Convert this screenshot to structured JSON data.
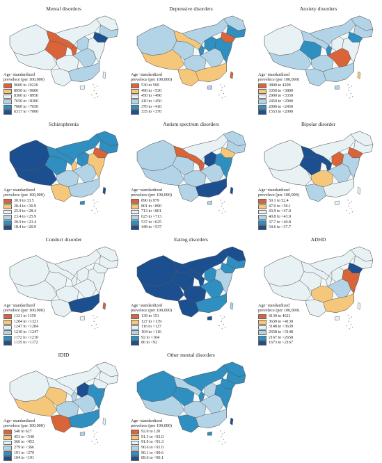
{
  "legend_title_line1": "Age−standardized",
  "legend_title_line2": "preveleсe (per 100,000)",
  "palette": [
    "#d9643a",
    "#f5c77a",
    "#e8f2f5",
    "#b3d3e6",
    "#2f8fc1",
    "#1c4f8f"
  ],
  "panels": [
    {
      "title": "Mental disorders",
      "legend": [
        "9600 to 10226",
        "8950 to <9600",
        "8300 to <8950",
        "7650 to <8300",
        "7000 to <7650",
        "6317 to <7000"
      ],
      "map": [
        {
          "region": "xinjiang",
          "class": 2
        },
        {
          "region": "tibet",
          "class": 2
        },
        {
          "region": "qinghai",
          "class": 0
        },
        {
          "region": "gansu",
          "class": 0
        },
        {
          "region": "inner-mongolia",
          "class": 2
        },
        {
          "region": "heilongjiang",
          "class": 2
        },
        {
          "region": "jilin",
          "class": 3
        },
        {
          "region": "liaoning",
          "class": 5
        },
        {
          "region": "sichuan",
          "class": 2
        },
        {
          "region": "yunnan",
          "class": 2
        },
        {
          "region": "central",
          "class": 3
        },
        {
          "region": "east-coast",
          "class": 2
        },
        {
          "region": "south",
          "class": 3
        },
        {
          "region": "taiwan",
          "class": 2
        },
        {
          "region": "hainan",
          "class": 2
        },
        {
          "region": "ningxia",
          "class": 0
        },
        {
          "region": "shanxi",
          "class": 3
        }
      ]
    },
    {
      "title": "Depressive disorders",
      "legend": [
        "530 to 569",
        "490 to <530",
        "450 to <490",
        "410 to <450",
        "370 to <410",
        "335 to <370"
      ],
      "map": [
        {
          "region": "xinjiang",
          "class": 3
        },
        {
          "region": "tibet",
          "class": 1
        },
        {
          "region": "qinghai",
          "class": 3
        },
        {
          "region": "gansu",
          "class": 1
        },
        {
          "region": "inner-mongolia",
          "class": 3
        },
        {
          "region": "heilongjiang",
          "class": 3
        },
        {
          "region": "jilin",
          "class": 4
        },
        {
          "region": "liaoning",
          "class": 0
        },
        {
          "region": "sichuan",
          "class": 3
        },
        {
          "region": "yunnan",
          "class": 1
        },
        {
          "region": "central",
          "class": 3
        },
        {
          "region": "east-coast",
          "class": 4
        },
        {
          "region": "south",
          "class": 1
        },
        {
          "region": "taiwan",
          "class": 0
        },
        {
          "region": "hainan",
          "class": 3
        },
        {
          "region": "ningxia",
          "class": 4
        },
        {
          "region": "shanxi",
          "class": 4
        }
      ]
    },
    {
      "title": "Anxiety disorders",
      "legend": [
        "3800 to 4299",
        "3350 to <3800",
        "2900 to <3350",
        "2450 to <2900",
        "2000 to <2450",
        "1553 to <2000"
      ],
      "map": [
        {
          "region": "xinjiang",
          "class": 2
        },
        {
          "region": "tibet",
          "class": 3
        },
        {
          "region": "qinghai",
          "class": 4
        },
        {
          "region": "gansu",
          "class": 3
        },
        {
          "region": "inner-mongolia",
          "class": 3
        },
        {
          "region": "heilongjiang",
          "class": 3
        },
        {
          "region": "jilin",
          "class": 3
        },
        {
          "region": "liaoning",
          "class": 4
        },
        {
          "region": "sichuan",
          "class": 3
        },
        {
          "region": "yunnan",
          "class": 3
        },
        {
          "region": "central",
          "class": 0
        },
        {
          "region": "east-coast",
          "class": 2
        },
        {
          "region": "south",
          "class": 3
        },
        {
          "region": "taiwan",
          "class": 1
        },
        {
          "region": "hainan",
          "class": 3
        },
        {
          "region": "ningxia",
          "class": 4
        },
        {
          "region": "shanxi",
          "class": 2
        }
      ]
    },
    {
      "title": "Schizophrenia",
      "legend": [
        "30.9 to 33.5",
        "28.4 to <30.9",
        "25.9 to <28.4",
        "23.4 to <25.9",
        "20.9 to <23.4",
        "18.4 to <20.9"
      ],
      "map": [
        {
          "region": "xinjiang",
          "class": 5
        },
        {
          "region": "tibet",
          "class": 5
        },
        {
          "region": "qinghai",
          "class": 4
        },
        {
          "region": "gansu",
          "class": 4
        },
        {
          "region": "inner-mongolia",
          "class": 4
        },
        {
          "region": "heilongjiang",
          "class": 4
        },
        {
          "region": "jilin",
          "class": 4
        },
        {
          "region": "liaoning",
          "class": 0
        },
        {
          "region": "sichuan",
          "class": 3
        },
        {
          "region": "yunnan",
          "class": 1
        },
        {
          "region": "central",
          "class": 3
        },
        {
          "region": "east-coast",
          "class": 1
        },
        {
          "region": "south",
          "class": 3
        },
        {
          "region": "taiwan",
          "class": 5
        },
        {
          "region": "hainan",
          "class": 4
        },
        {
          "region": "ningxia",
          "class": 1
        },
        {
          "region": "shanxi",
          "class": 4
        }
      ]
    },
    {
      "title": "Autism spectrum disorders",
      "legend": [
        "890 to 979",
        "801 to <890",
        "713 to <801",
        "625 to <713",
        "537 to <625",
        "448 to <537"
      ],
      "map": [
        {
          "region": "xinjiang",
          "class": 3
        },
        {
          "region": "tibet",
          "class": 3
        },
        {
          "region": "qinghai",
          "class": 3
        },
        {
          "region": "gansu",
          "class": 0
        },
        {
          "region": "inner-mongolia",
          "class": 2
        },
        {
          "region": "heilongjiang",
          "class": 3
        },
        {
          "region": "jilin",
          "class": 3
        },
        {
          "region": "liaoning",
          "class": 1
        },
        {
          "region": "sichuan",
          "class": 3
        },
        {
          "region": "yunnan",
          "class": 3
        },
        {
          "region": "central",
          "class": 3
        },
        {
          "region": "east-coast",
          "class": 4
        },
        {
          "region": "south",
          "class": 5
        },
        {
          "region": "taiwan",
          "class": 5
        },
        {
          "region": "hainan",
          "class": 3
        },
        {
          "region": "ningxia",
          "class": 0
        },
        {
          "region": "shanxi",
          "class": 5
        }
      ]
    },
    {
      "title": "Bipolar disorder",
      "legend": [
        "50.1 to 52.4",
        "47.0 to <50.1",
        "43.9 to <47.0",
        "40.8 to <43.9",
        "37.7 to <40.8",
        "34.6 to <37.7"
      ],
      "map": [
        {
          "region": "xinjiang",
          "class": 2
        },
        {
          "region": "tibet",
          "class": 2
        },
        {
          "region": "qinghai",
          "class": 5
        },
        {
          "region": "gansu",
          "class": 5
        },
        {
          "region": "inner-mongolia",
          "class": 2
        },
        {
          "region": "heilongjiang",
          "class": 2
        },
        {
          "region": "jilin",
          "class": 2
        },
        {
          "region": "liaoning",
          "class": 0
        },
        {
          "region": "sichuan",
          "class": 1
        },
        {
          "region": "yunnan",
          "class": 3
        },
        {
          "region": "central",
          "class": 3
        },
        {
          "region": "east-coast",
          "class": 3
        },
        {
          "region": "south",
          "class": 2
        },
        {
          "region": "taiwan",
          "class": 2
        },
        {
          "region": "hainan",
          "class": 2
        },
        {
          "region": "ningxia",
          "class": 5
        },
        {
          "region": "shanxi",
          "class": 0
        }
      ]
    },
    {
      "title": "Conduct disorder",
      "legend": [
        "1321 to 1359",
        "1284 to <1321",
        "1247 to <1284",
        "1210 to <1247",
        "1172 to <1210",
        "1135 to <1172"
      ],
      "map": [
        {
          "region": "xinjiang",
          "class": 2
        },
        {
          "region": "tibet",
          "class": 2
        },
        {
          "region": "qinghai",
          "class": 2
        },
        {
          "region": "gansu",
          "class": 2
        },
        {
          "region": "inner-mongolia",
          "class": 2
        },
        {
          "region": "heilongjiang",
          "class": 2
        },
        {
          "region": "jilin",
          "class": 2
        },
        {
          "region": "liaoning",
          "class": 2
        },
        {
          "region": "sichuan",
          "class": 2
        },
        {
          "region": "yunnan",
          "class": 2
        },
        {
          "region": "central",
          "class": 2
        },
        {
          "region": "east-coast",
          "class": 2
        },
        {
          "region": "south",
          "class": 5
        },
        {
          "region": "taiwan",
          "class": 0
        },
        {
          "region": "hainan",
          "class": 2
        },
        {
          "region": "ningxia",
          "class": 2
        },
        {
          "region": "shanxi",
          "class": 2
        }
      ]
    },
    {
      "title": "Eating disorders",
      "legend": [
        "139 to 151",
        "127 to <139",
        "116 to <127",
        "104 to <116",
        "92 to <104",
        "80 to <92"
      ],
      "map": [
        {
          "region": "xinjiang",
          "class": 5
        },
        {
          "region": "tibet",
          "class": 5
        },
        {
          "region": "qinghai",
          "class": 5
        },
        {
          "region": "gansu",
          "class": 5
        },
        {
          "region": "inner-mongolia",
          "class": 5
        },
        {
          "region": "heilongjiang",
          "class": 5
        },
        {
          "region": "jilin",
          "class": 4
        },
        {
          "region": "liaoning",
          "class": 4
        },
        {
          "region": "sichuan",
          "class": 5
        },
        {
          "region": "yunnan",
          "class": 5
        },
        {
          "region": "central",
          "class": 4
        },
        {
          "region": "east-coast",
          "class": 3
        },
        {
          "region": "south",
          "class": 4
        },
        {
          "region": "taiwan",
          "class": 3
        },
        {
          "region": "hainan",
          "class": 5
        },
        {
          "region": "ningxia",
          "class": 5
        },
        {
          "region": "shanxi",
          "class": 4
        }
      ]
    },
    {
      "title": "ADHD",
      "legend": [
        "4130 to 4621",
        "3639 to <4130",
        "3148 to <3639",
        "2658 to <3148",
        "2167 to <2658",
        "1673 to <2167"
      ],
      "map": [
        {
          "region": "xinjiang",
          "class": 2
        },
        {
          "region": "tibet",
          "class": 2
        },
        {
          "region": "qinghai",
          "class": 2
        },
        {
          "region": "gansu",
          "class": 2
        },
        {
          "region": "inner-mongolia",
          "class": 2
        },
        {
          "region": "heilongjiang",
          "class": 2
        },
        {
          "region": "jilin",
          "class": 2
        },
        {
          "region": "liaoning",
          "class": 5
        },
        {
          "region": "sichuan",
          "class": 1
        },
        {
          "region": "yunnan",
          "class": 2
        },
        {
          "region": "central",
          "class": 3
        },
        {
          "region": "east-coast",
          "class": 0
        },
        {
          "region": "south",
          "class": 1
        },
        {
          "region": "taiwan",
          "class": 2
        },
        {
          "region": "hainan",
          "class": 2
        },
        {
          "region": "ningxia",
          "class": 2
        },
        {
          "region": "shanxi",
          "class": 2
        }
      ]
    },
    {
      "title": "IDID",
      "legend": [
        "540 to 627",
        "453 to <540",
        "366 to <453",
        "279 to <366",
        "191 to <279",
        "104 to <191"
      ],
      "map": [
        {
          "region": "xinjiang",
          "class": 2
        },
        {
          "region": "tibet",
          "class": 1
        },
        {
          "region": "qinghai",
          "class": 1
        },
        {
          "region": "gansu",
          "class": 2
        },
        {
          "region": "inner-mongolia",
          "class": 2
        },
        {
          "region": "heilongjiang",
          "class": 2
        },
        {
          "region": "jilin",
          "class": 2
        },
        {
          "region": "liaoning",
          "class": 2
        },
        {
          "region": "sichuan",
          "class": 3
        },
        {
          "region": "yunnan",
          "class": 0
        },
        {
          "region": "central",
          "class": 3
        },
        {
          "region": "east-coast",
          "class": 4
        },
        {
          "region": "south",
          "class": 4
        },
        {
          "region": "taiwan",
          "class": 2
        },
        {
          "region": "hainan",
          "class": 3
        },
        {
          "region": "ningxia",
          "class": 3
        },
        {
          "region": "shanxi",
          "class": 5
        }
      ]
    },
    {
      "title": "Other mental disorders",
      "legend": [
        "92.0 to 120",
        "91.3 to <92.0",
        "91.0 to <91.3",
        "90.6 to <91.0",
        "90.1 to <90.6",
        "89.6 to <90.1"
      ],
      "map": [
        {
          "region": "xinjiang",
          "class": 4
        },
        {
          "region": "tibet",
          "class": 3
        },
        {
          "region": "qinghai",
          "class": 4
        },
        {
          "region": "gansu",
          "class": 3
        },
        {
          "region": "inner-mongolia",
          "class": 4
        },
        {
          "region": "heilongjiang",
          "class": 4
        },
        {
          "region": "jilin",
          "class": 4
        },
        {
          "region": "liaoning",
          "class": 4
        },
        {
          "region": "sichuan",
          "class": 3
        },
        {
          "region": "yunnan",
          "class": 4
        },
        {
          "region": "central",
          "class": 3
        },
        {
          "region": "east-coast",
          "class": 4
        },
        {
          "region": "south",
          "class": 3
        },
        {
          "region": "taiwan",
          "class": 5
        },
        {
          "region": "hainan",
          "class": 4
        },
        {
          "region": "ningxia",
          "class": 4
        },
        {
          "region": "shanxi",
          "class": 3
        }
      ]
    }
  ]
}
